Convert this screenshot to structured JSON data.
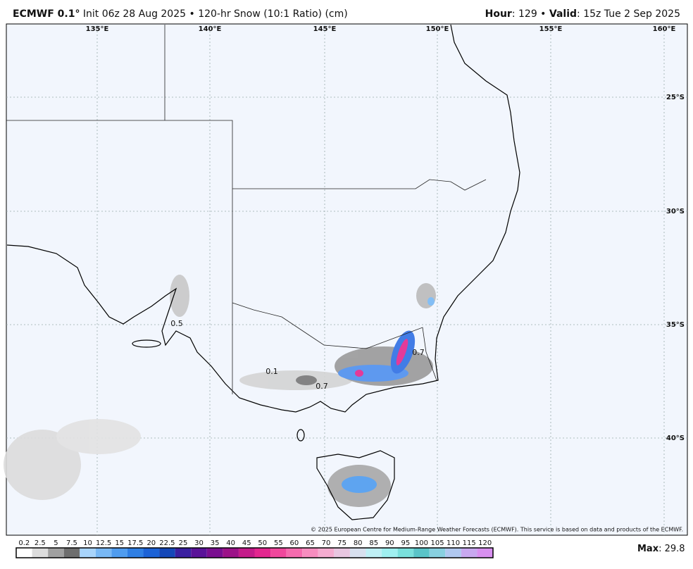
{
  "header": {
    "model": "ECMWF 0.1°",
    "text": "Init 06z 28 Aug 2025 • 120-hr Snow (10:1 Ratio) (cm)",
    "hour_label": "Hour",
    "hour_text": ": 129 • ",
    "valid_label": "Valid",
    "valid_text": ": 15z Tue 2 Sep 2025"
  },
  "map": {
    "lon_labels": [
      "135°E",
      "140°E",
      "145°E",
      "150°E",
      "155°E",
      "160°E"
    ],
    "lat_labels": [
      "25°S",
      "30°S",
      "35°S",
      "40°S"
    ],
    "point_labels": [
      "0.5",
      "0.1",
      "0.7",
      "0.7"
    ],
    "copyright": "© 2025 European Centre for Medium-Range Weather Forecasts (ECMWF). This service is based on data and products of the ECMWF."
  },
  "colorbar": {
    "labels": [
      "0.2",
      "2.5",
      "5",
      "7.5",
      "10",
      "12.5",
      "15",
      "17.5",
      "20",
      "22.5",
      "25",
      "30",
      "35",
      "40",
      "45",
      "50",
      "55",
      "60",
      "65",
      "70",
      "75",
      "80",
      "85",
      "90",
      "95",
      "100",
      "105",
      "110",
      "115",
      "120"
    ],
    "colors": [
      "#ffffff",
      "#dcdcdc",
      "#a0a0a0",
      "#6e6e6e",
      "#a8d4fb",
      "#78b8f5",
      "#4f9cef",
      "#2f7fe4",
      "#1c62d6",
      "#1447b8",
      "#3a1fa0",
      "#5a1298",
      "#7a0e90",
      "#9c1288",
      "#c41b8a",
      "#e3268f",
      "#f0479c",
      "#f56bae",
      "#f78dbf",
      "#f5acd0",
      "#e8c6e0",
      "#d8e0ee",
      "#bff0f5",
      "#9ff0f0",
      "#7ae0dc",
      "#5ac4c8",
      "#88d0e0",
      "#b0c8f0",
      "#c8a8f0",
      "#d890f0"
    ]
  },
  "footer": {
    "max_label": "Max",
    "max_text": ": 29.8"
  }
}
